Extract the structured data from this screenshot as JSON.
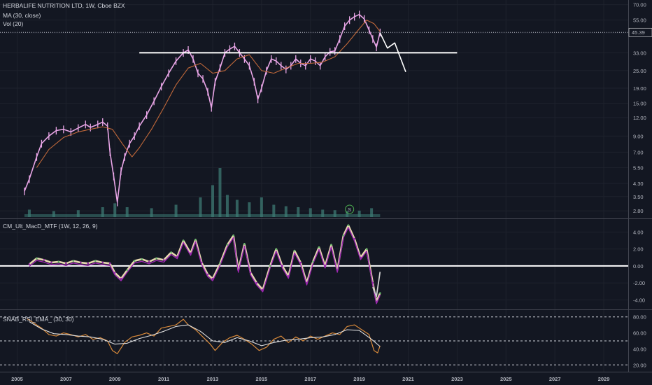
{
  "header": {
    "title": "HERBALIFE NUTRITION LTD, 1W, Cboe BZX",
    "ma_label": "MA (30, close)",
    "vol_label": "Vol (20)"
  },
  "colors": {
    "background": "#131722",
    "grid": "#1e222d",
    "candle": "#e8a5e6",
    "ma": "#c0683a",
    "white_line": "#ffffff",
    "macd_main": "#9c27b0",
    "macd_up": "#66bb6a",
    "macd_signal": "#e6d8b0",
    "rsi": "#d98a3a",
    "rsi_ema": "#e0e0e0",
    "vol": "#3d7a73"
  },
  "chart_data": [
    {
      "type": "line",
      "pane": "price",
      "title": "HERBALIFE NUTRITION LTD, 1W, Cboe BZX",
      "y_scale": "log",
      "y_ticks": [
        "70.00",
        "55.00",
        "45.00",
        "33.00",
        "25.00",
        "19.00",
        "15.00",
        "12.00",
        "9.00",
        "7.00",
        "5.50",
        "4.30",
        "3.50",
        "2.80"
      ],
      "y_range": [
        2.6,
        72
      ],
      "x_ticks": [
        "2005",
        "2007",
        "2009",
        "2011",
        "2013",
        "2015",
        "2017",
        "2019",
        "2021",
        "2023",
        "2025",
        "2027",
        "2029"
      ],
      "x_range": [
        2004.3,
        2030.0
      ],
      "last_price_label": "45.39",
      "last_price": 45.39,
      "series": [
        {
          "name": "",
          "x": [
            2005.3,
            2005.5,
            2005.8,
            2006.0,
            2006.3,
            2006.6,
            2006.9,
            2007.2,
            2007.5,
            2007.8,
            2008.0,
            2008.3,
            2008.5,
            2008.7,
            2008.8,
            2008.95,
            2009.1,
            2009.25,
            2009.4,
            2009.6,
            2009.8,
            2010.0,
            2010.3,
            2010.6,
            2010.9,
            2011.2,
            2011.5,
            2011.8,
            2012.0,
            2012.2,
            2012.4,
            2012.6,
            2012.8,
            2012.95,
            2013.1,
            2013.3,
            2013.5,
            2013.7,
            2013.9,
            2014.1,
            2014.3,
            2014.5,
            2014.7,
            2014.85,
            2015.0,
            2015.2,
            2015.4,
            2015.6,
            2015.8,
            2016.0,
            2016.2,
            2016.4,
            2016.6,
            2016.8,
            2017.0,
            2017.2,
            2017.4,
            2017.6,
            2017.8,
            2018.0,
            2018.2,
            2018.4,
            2018.6,
            2018.8,
            2019.0,
            2019.2,
            2019.4,
            2019.55,
            2019.7,
            2019.85
          ],
          "values": [
            3.8,
            4.6,
            6.5,
            8.0,
            9.0,
            9.8,
            10.0,
            9.6,
            10.2,
            10.8,
            10.3,
            10.8,
            11.2,
            10.5,
            7.0,
            4.8,
            3.2,
            5.2,
            6.5,
            8.0,
            9.0,
            10.5,
            12.5,
            15.5,
            19.5,
            24.0,
            29.0,
            33.0,
            34.5,
            30.0,
            24.0,
            22.0,
            18.0,
            14.0,
            21.0,
            26.0,
            33.0,
            35.0,
            36.5,
            33.0,
            30.0,
            27.0,
            21.0,
            16.0,
            19.0,
            25.0,
            30.0,
            29.0,
            27.0,
            25.5,
            27.0,
            30.0,
            28.0,
            27.0,
            30.0,
            29.0,
            27.0,
            31.0,
            33.5,
            34.0,
            41.0,
            50.0,
            55.0,
            58.0,
            60.0,
            56.0,
            47.0,
            41.0,
            36.0,
            45.39
          ]
        },
        {
          "name": "",
          "x": [
            2005.8,
            2006.3,
            2006.9,
            2007.5,
            2008.0,
            2008.5,
            2008.9,
            2009.3,
            2009.7,
            2010.0,
            2010.5,
            2011.0,
            2011.5,
            2012.0,
            2012.5,
            2013.0,
            2013.5,
            2014.0,
            2014.5,
            2015.0,
            2015.5,
            2016.0,
            2016.5,
            2017.0,
            2017.5,
            2018.0,
            2018.5,
            2019.0,
            2019.3,
            2019.6,
            2019.85
          ],
          "values": [
            5.5,
            7.3,
            8.8,
            9.6,
            10.0,
            10.4,
            10.0,
            8.0,
            6.5,
            7.5,
            10.0,
            14.0,
            20.0,
            26.0,
            28.0,
            24.0,
            25.0,
            30.0,
            32.0,
            25.0,
            24.0,
            26.0,
            28.0,
            28.0,
            28.5,
            31.0,
            38.0,
            48.0,
            55.0,
            52.0,
            46.0
          ]
        }
      ],
      "annotations": {
        "horizontal_level": {
          "value": 33.0,
          "x_start": 2010.0,
          "x_end": 2023.0
        },
        "projection": {
          "x": [
            2019.85,
            2020.15,
            2020.45,
            2020.9
          ],
          "values": [
            45.0,
            35.5,
            38.5,
            24.5
          ]
        }
      },
      "volume": {
        "name": "Vol (20)",
        "x": [
          2005.5,
          2006.5,
          2007.5,
          2008.5,
          2009.0,
          2009.5,
          2010.5,
          2011.5,
          2012.5,
          2013.0,
          2013.3,
          2013.6,
          2014.0,
          2014.5,
          2015.0,
          2015.5,
          2016.0,
          2016.5,
          2017.0,
          2017.5,
          2018.0,
          2018.5,
          2019.0,
          2019.5
        ],
        "values": [
          0.15,
          0.12,
          0.14,
          0.2,
          0.28,
          0.2,
          0.18,
          0.25,
          0.4,
          0.65,
          1.0,
          0.45,
          0.35,
          0.3,
          0.4,
          0.25,
          0.22,
          0.2,
          0.18,
          0.15,
          0.14,
          0.12,
          0.13,
          0.18
        ]
      },
      "event_marker": {
        "label": "S",
        "x": 2018.6
      }
    },
    {
      "type": "line",
      "pane": "macd",
      "title": "CM_Ult_MacD_MTF (1W, 12, 26, 9)",
      "y_ticks": [
        "4.00",
        "2.00",
        "0.00",
        "-2.00",
        "-4.00"
      ],
      "y_range": [
        -4.8,
        5.2
      ],
      "zero_line": 0,
      "series": [
        {
          "name": "",
          "x": [
            2005.5,
            2005.8,
            2006.1,
            2006.4,
            2006.7,
            2007.0,
            2007.3,
            2007.6,
            2007.9,
            2008.2,
            2008.5,
            2008.8,
            2009.0,
            2009.25,
            2009.5,
            2009.8,
            2010.1,
            2010.4,
            2010.7,
            2011.0,
            2011.3,
            2011.55,
            2011.8,
            2012.1,
            2012.3,
            2012.55,
            2012.8,
            2013.0,
            2013.3,
            2013.6,
            2013.85,
            2014.05,
            2014.3,
            2014.55,
            2014.8,
            2015.05,
            2015.35,
            2015.6,
            2015.85,
            2016.1,
            2016.35,
            2016.6,
            2016.85,
            2017.1,
            2017.35,
            2017.6,
            2017.85,
            2018.1,
            2018.35,
            2018.55,
            2018.8,
            2019.05,
            2019.3,
            2019.55,
            2019.7,
            2019.85
          ],
          "values": [
            0.2,
            0.9,
            0.7,
            0.4,
            0.5,
            0.3,
            0.6,
            0.4,
            0.3,
            0.6,
            0.4,
            0.3,
            -0.8,
            -1.5,
            -0.5,
            0.6,
            0.8,
            0.5,
            0.9,
            0.7,
            1.6,
            1.1,
            3.0,
            1.5,
            3.1,
            0.4,
            -1.0,
            -1.5,
            0.3,
            2.5,
            3.6,
            -0.5,
            2.6,
            -0.8,
            -2.0,
            -2.8,
            0.0,
            2.0,
            0.0,
            -1.2,
            1.8,
            0.4,
            -2.0,
            0.5,
            2.2,
            0.0,
            2.5,
            -0.5,
            3.6,
            4.8,
            3.2,
            1.0,
            2.0,
            -2.0,
            -4.2,
            -3.2
          ]
        },
        {
          "name": "",
          "x": [
            2019.55,
            2019.7,
            2019.85
          ],
          "values": [
            -2.5,
            -3.6,
            -0.7
          ]
        }
      ]
    },
    {
      "type": "line",
      "pane": "rsi",
      "title": "SNAB_RSI_EMA_ (30, 30)",
      "y_ticks": [
        "80.00",
        "60.00",
        "40.00",
        "20.00"
      ],
      "y_range": [
        15,
        85
      ],
      "levels": [
        80,
        50,
        20
      ],
      "series": [
        {
          "name": "",
          "x": [
            2005.4,
            2005.7,
            2006.0,
            2006.3,
            2006.6,
            2006.9,
            2007.2,
            2007.5,
            2007.8,
            2008.1,
            2008.4,
            2008.7,
            2008.9,
            2009.1,
            2009.4,
            2009.7,
            2010.0,
            2010.3,
            2010.6,
            2010.9,
            2011.2,
            2011.5,
            2011.8,
            2012.0,
            2012.3,
            2012.6,
            2012.9,
            2013.1,
            2013.4,
            2013.7,
            2014.0,
            2014.3,
            2014.6,
            2014.9,
            2015.2,
            2015.5,
            2015.8,
            2016.1,
            2016.4,
            2016.7,
            2017.0,
            2017.3,
            2017.6,
            2017.9,
            2018.2,
            2018.5,
            2018.8,
            2019.1,
            2019.4,
            2019.6,
            2019.75,
            2019.85
          ],
          "values": [
            78,
            72,
            66,
            58,
            56,
            60,
            58,
            55,
            58,
            52,
            54,
            50,
            38,
            34,
            48,
            55,
            57,
            60,
            56,
            66,
            68,
            70,
            77,
            70,
            64,
            55,
            46,
            38,
            48,
            54,
            57,
            52,
            46,
            38,
            42,
            52,
            56,
            48,
            55,
            50,
            56,
            52,
            56,
            60,
            58,
            68,
            70,
            64,
            58,
            38,
            35,
            44
          ]
        },
        {
          "name": "",
          "x": [
            2005.5,
            2006.0,
            2006.5,
            2007.0,
            2007.5,
            2008.0,
            2008.5,
            2009.0,
            2009.5,
            2010.0,
            2010.5,
            2011.0,
            2011.5,
            2012.0,
            2012.5,
            2013.0,
            2013.5,
            2014.0,
            2014.5,
            2015.0,
            2015.5,
            2016.0,
            2016.5,
            2017.0,
            2017.5,
            2018.0,
            2018.5,
            2019.0,
            2019.5,
            2019.85
          ],
          "values": [
            74,
            65,
            59,
            58,
            56,
            55,
            52,
            46,
            47,
            53,
            57,
            62,
            68,
            70,
            62,
            50,
            48,
            54,
            50,
            44,
            48,
            51,
            52,
            54,
            55,
            58,
            64,
            63,
            52,
            43
          ]
        }
      ]
    }
  ]
}
